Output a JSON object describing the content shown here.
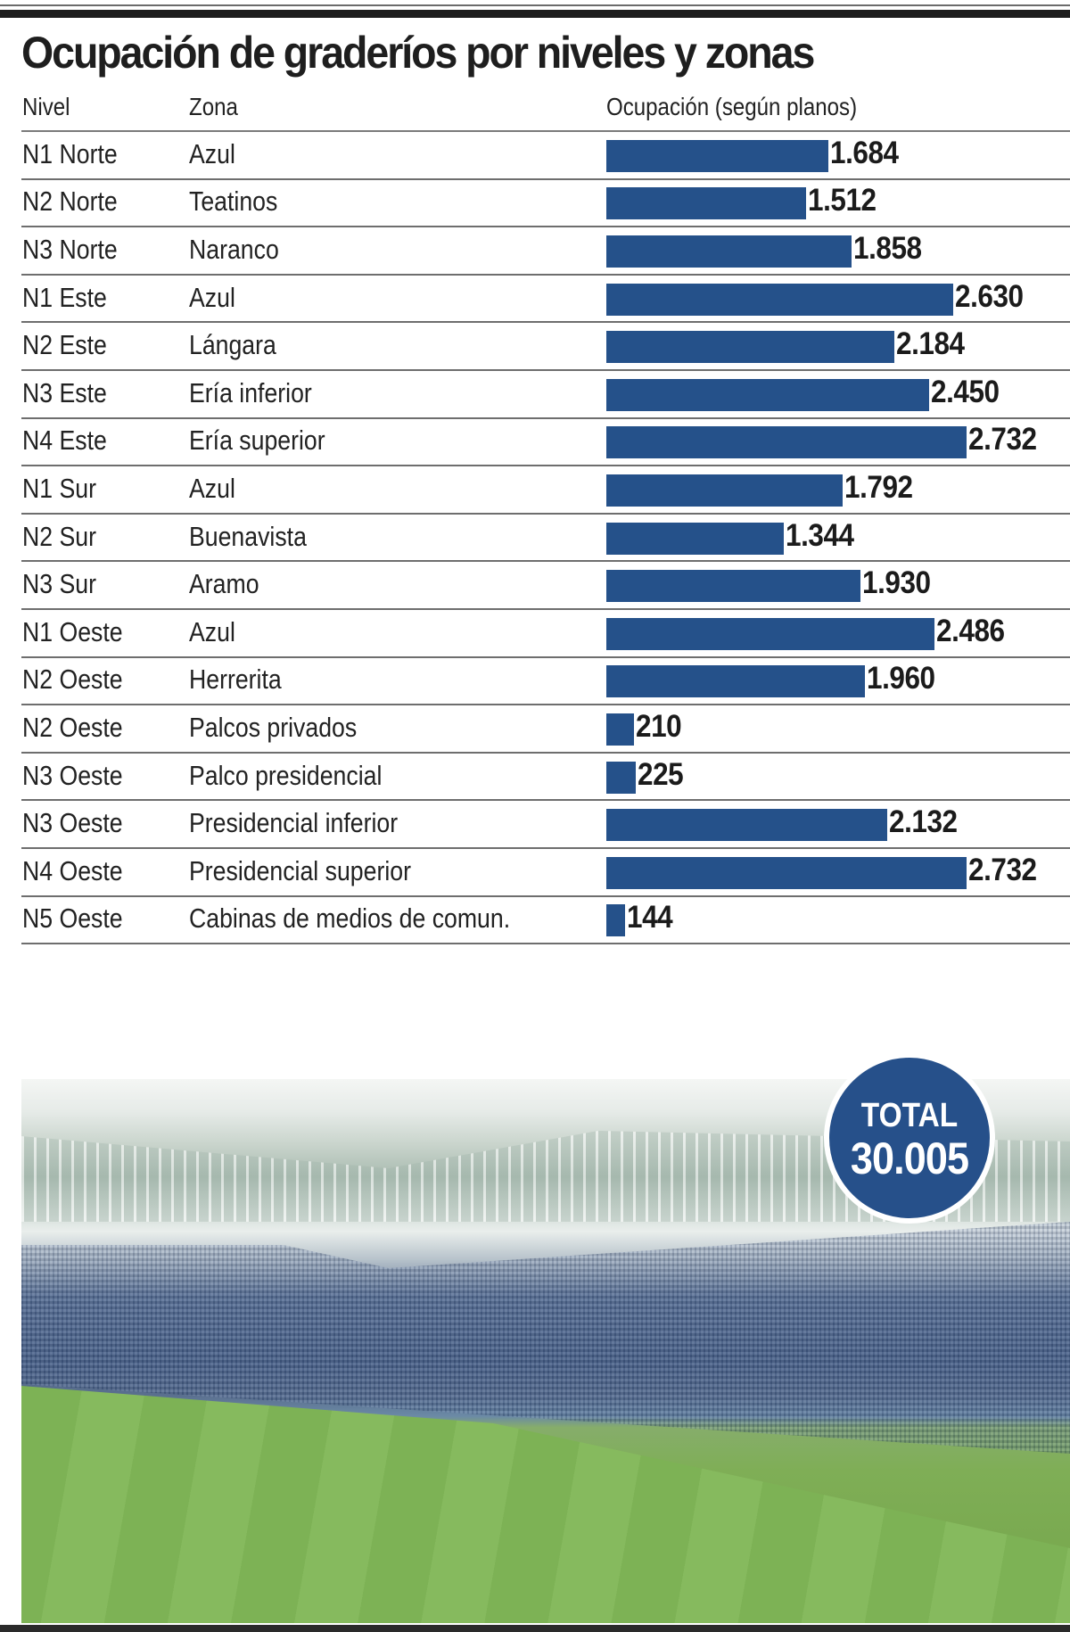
{
  "title": "Ocupación de graderíos por niveles y zonas",
  "headers": {
    "nivel": "Nivel",
    "zona": "Zona",
    "ocupacion": "Ocupación (según planos)"
  },
  "rows": [
    {
      "nivel": "N1 Norte",
      "zona": "Azul",
      "value": 1684,
      "label": "1.684"
    },
    {
      "nivel": "N2 Norte",
      "zona": "Teatinos",
      "value": 1512,
      "label": "1.512"
    },
    {
      "nivel": "N3 Norte",
      "zona": "Naranco",
      "value": 1858,
      "label": "1.858"
    },
    {
      "nivel": "N1 Este",
      "zona": "Azul",
      "value": 2630,
      "label": "2.630"
    },
    {
      "nivel": "N2 Este",
      "zona": "Lángara",
      "value": 2184,
      "label": "2.184"
    },
    {
      "nivel": "N3 Este",
      "zona": "Ería inferior",
      "value": 2450,
      "label": "2.450"
    },
    {
      "nivel": "N4 Este",
      "zona": "Ería superior",
      "value": 2732,
      "label": "2.732"
    },
    {
      "nivel": "N1 Sur",
      "zona": "Azul",
      "value": 1792,
      "label": "1.792"
    },
    {
      "nivel": "N2 Sur",
      "zona": "Buenavista",
      "value": 1344,
      "label": "1.344"
    },
    {
      "nivel": "N3 Sur",
      "zona": "Aramo",
      "value": 1930,
      "label": "1.930"
    },
    {
      "nivel": "N1 Oeste",
      "zona": "Azul",
      "value": 2486,
      "label": "2.486"
    },
    {
      "nivel": "N2 Oeste",
      "zona": "Herrerita",
      "value": 1960,
      "label": "1.960"
    },
    {
      "nivel": "N2 Oeste",
      "zona": "Palcos privados",
      "value": 210,
      "label": "210"
    },
    {
      "nivel": "N3 Oeste",
      "zona": "Palco presidencial",
      "value": 225,
      "label": "225"
    },
    {
      "nivel": "N3 Oeste",
      "zona": "Presidencial inferior",
      "value": 2132,
      "label": "2.132"
    },
    {
      "nivel": "N4 Oeste",
      "zona": "Presidencial superior",
      "value": 2732,
      "label": "2.732"
    },
    {
      "nivel": "N5 Oeste",
      "zona": "Cabinas de medios de comun.",
      "value": 144,
      "label": "144"
    }
  ],
  "total": {
    "label": "TOTAL",
    "value": "30.005"
  },
  "colors": {
    "bar": "#25518a",
    "badge": "#26508a"
  },
  "chart_data": {
    "type": "bar",
    "orientation": "horizontal",
    "title": "Ocupación de graderíos por niveles y zonas",
    "xlabel": "Ocupación (según planos)",
    "ylabel": "",
    "categories": [
      "N1 Norte - Azul",
      "N2 Norte - Teatinos",
      "N3 Norte - Naranco",
      "N1 Este - Azul",
      "N2 Este - Lángara",
      "N3 Este - Ería inferior",
      "N4 Este - Ería superior",
      "N1 Sur - Azul",
      "N2 Sur - Buenavista",
      "N3 Sur - Aramo",
      "N1 Oeste - Azul",
      "N2 Oeste - Herrerita",
      "N2 Oeste - Palcos privados",
      "N3 Oeste - Palco presidencial",
      "N3 Oeste - Presidencial inferior",
      "N4 Oeste - Presidencial superior",
      "N5 Oeste - Cabinas de medios de comun."
    ],
    "values": [
      1684,
      1512,
      1858,
      2630,
      2184,
      2450,
      2732,
      1792,
      1344,
      1930,
      2486,
      1960,
      210,
      225,
      2132,
      2732,
      144
    ],
    "total": 30005,
    "grid": false,
    "legend": null
  }
}
